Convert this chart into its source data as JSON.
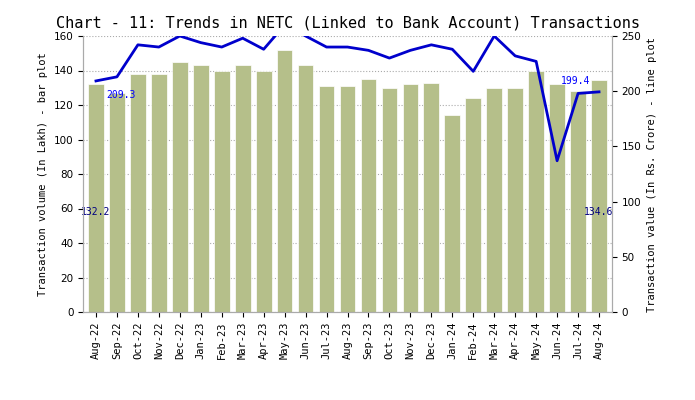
{
  "title": "Chart - 11: Trends in NETC (Linked to Bank Account) Transactions",
  "categories": [
    "Aug-22",
    "Sep-22",
    "Oct-22",
    "Nov-22",
    "Dec-22",
    "Jan-23",
    "Feb-23",
    "Mar-23",
    "Apr-23",
    "May-23",
    "Jun-23",
    "Jul-23",
    "Aug-23",
    "Sep-23",
    "Oct-23",
    "Nov-23",
    "Dec-23",
    "Jan-24",
    "Feb-24",
    "Mar-24",
    "Apr-24",
    "May-24",
    "Jun-24",
    "Jul-24",
    "Aug-24"
  ],
  "bar_values": [
    132.2,
    127,
    138,
    138,
    145,
    143,
    140,
    143,
    140,
    152,
    143,
    131,
    131,
    135,
    130,
    132,
    133,
    114,
    124,
    130,
    130,
    140,
    132,
    128,
    134.6
  ],
  "line_values": [
    209.3,
    213,
    242,
    240,
    250,
    244,
    240,
    248,
    238,
    260,
    250,
    240,
    240,
    237,
    230,
    237,
    242,
    238,
    218,
    250,
    232,
    227,
    137,
    198,
    199.4
  ],
  "bar_color": "#b5bf8a",
  "line_color": "#0000cc",
  "ylabel_left": "Transaction volume (In Lakh) - bar plot",
  "ylabel_right": "Transaction value (In Rs. Crore) - line plot",
  "ylim_left": [
    0,
    160
  ],
  "ylim_right": [
    0,
    250
  ],
  "yticks_left": [
    0,
    20,
    40,
    60,
    80,
    100,
    120,
    140,
    160
  ],
  "yticks_right": [
    0,
    50,
    100,
    150,
    200,
    250
  ],
  "first_bar_label": "132.2",
  "last_bar_label": "134.6",
  "first_line_label": "209.3",
  "last_line_label": "199.4",
  "grid_color": "#aaaaaa",
  "title_fontsize": 11,
  "axis_label_fontsize": 7.5,
  "tick_fontsize": 7.5,
  "label_fontsize": 7
}
